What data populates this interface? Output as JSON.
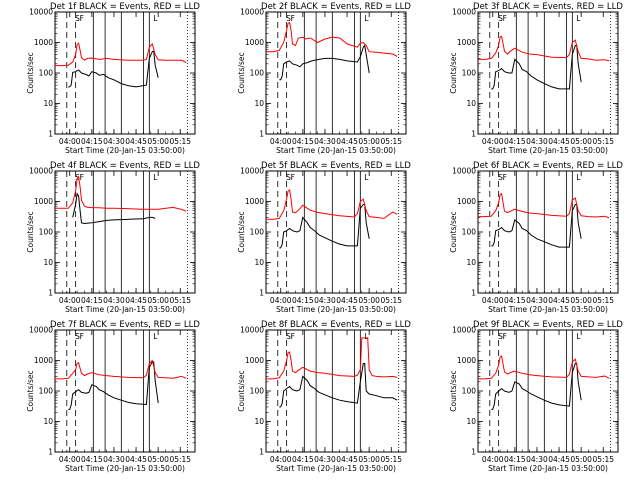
{
  "figure": {
    "type": "line",
    "background": "#ffffff",
    "series_colors": {
      "events": "#000000",
      "lld": "#ff0000"
    },
    "ylabel": "Counts/sec",
    "xlabel": "Start Time (20-Jan-15 03:50:00)",
    "x_tick_labels": [
      "04:00",
      "04:15",
      "04:30",
      "04:45",
      "05:00",
      "05:15"
    ],
    "y_tick_labels": [
      "1",
      "10",
      "100",
      "1000",
      "10000"
    ],
    "letter_markers": [
      "S",
      "F",
      "L"
    ]
  },
  "chart_data": [
    {
      "type": "line",
      "title": "Det 1f BLACK = Events, RED = LLD",
      "xlabel": "Start Time (20-Jan-15 03:50:00)",
      "ylabel": "Counts/sec",
      "x_unit": "minutes after 03:50:00",
      "xlim": [
        0,
        95
      ],
      "ylim": [
        1,
        10000
      ],
      "y_scale": "log",
      "events": {
        "x": [
          9,
          10,
          11,
          12,
          14,
          16,
          18,
          21,
          23,
          25,
          28,
          30,
          33,
          36,
          40,
          45,
          50,
          55,
          62,
          64,
          66,
          67,
          68,
          70
        ],
        "y": [
          35,
          35,
          40,
          105,
          110,
          125,
          100,
          90,
          80,
          110,
          100,
          85,
          90,
          70,
          60,
          45,
          38,
          35,
          40,
          300,
          500,
          520,
          180,
          70
        ]
      },
      "lld": {
        "x": [
          0,
          5,
          9,
          12,
          14,
          15,
          16,
          17,
          18,
          20,
          22,
          25,
          30,
          35,
          40,
          50,
          60,
          62,
          64,
          66,
          68,
          70,
          75,
          80,
          86,
          89
        ],
        "y": [
          175,
          175,
          180,
          230,
          400,
          850,
          950,
          550,
          320,
          260,
          300,
          310,
          280,
          300,
          280,
          260,
          260,
          280,
          700,
          900,
          400,
          270,
          260,
          260,
          260,
          220
        ]
      }
    },
    {
      "type": "line",
      "title": "Det 2f BLACK = Events, RED = LLD",
      "xlabel": "Start Time (20-Jan-15 03:50:00)",
      "ylabel": "Counts/sec",
      "x_unit": "minutes after 03:50:00",
      "xlim": [
        0,
        95
      ],
      "ylim": [
        1,
        10000
      ],
      "y_scale": "log",
      "events": {
        "x": [
          9,
          10,
          11,
          12,
          14,
          16,
          18,
          21,
          23,
          25,
          28,
          30,
          33,
          36,
          40,
          45,
          50,
          55,
          62,
          64,
          66,
          67,
          68,
          70
        ],
        "y": [
          60,
          60,
          80,
          200,
          230,
          250,
          200,
          180,
          160,
          200,
          220,
          240,
          260,
          280,
          300,
          300,
          280,
          250,
          230,
          340,
          700,
          800,
          400,
          100
        ]
      },
      "lld": {
        "x": [
          0,
          5,
          9,
          12,
          14,
          15,
          16,
          17,
          18,
          20,
          22,
          25,
          27,
          30,
          35,
          40,
          45,
          50,
          55,
          62,
          64,
          66,
          68,
          70,
          75,
          80,
          86,
          89
        ],
        "y": [
          500,
          500,
          550,
          1000,
          2500,
          4300,
          4500,
          2500,
          900,
          800,
          1400,
          1500,
          1300,
          1400,
          1000,
          1300,
          1500,
          1400,
          900,
          700,
          950,
          1000,
          800,
          500,
          480,
          450,
          420,
          350
        ]
      }
    },
    {
      "type": "line",
      "title": "Det 3f BLACK = Events, RED = LLD",
      "xlabel": "Start Time (20-Jan-15 03:50:00)",
      "ylabel": "Counts/sec",
      "x_unit": "minutes after 03:50:00",
      "xlim": [
        0,
        95
      ],
      "ylim": [
        1,
        10000
      ],
      "y_scale": "log",
      "events": {
        "x": [
          9,
          10,
          11,
          12,
          14,
          16,
          18,
          21,
          23,
          25,
          28,
          30,
          33,
          36,
          40,
          45,
          50,
          55,
          62,
          64,
          66,
          67,
          68,
          70
        ],
        "y": [
          30,
          30,
          40,
          110,
          120,
          140,
          110,
          100,
          100,
          280,
          200,
          130,
          110,
          80,
          60,
          45,
          35,
          30,
          30,
          400,
          800,
          800,
          200,
          50
        ]
      },
      "lld": {
        "x": [
          0,
          5,
          9,
          12,
          14,
          15,
          16,
          17,
          18,
          20,
          22,
          25,
          30,
          35,
          40,
          50,
          60,
          62,
          64,
          66,
          68,
          70,
          75,
          80,
          86,
          89
        ],
        "y": [
          280,
          280,
          300,
          450,
          800,
          1500,
          1600,
          900,
          520,
          420,
          520,
          650,
          480,
          420,
          400,
          330,
          320,
          400,
          1000,
          1200,
          500,
          300,
          290,
          260,
          270,
          250
        ]
      }
    },
    {
      "type": "line",
      "title": "Det 4f BLACK = Events, RED = LLD",
      "xlabel": "Start Time (20-Jan-15 03:50:00)",
      "ylabel": "Counts/sec",
      "x_unit": "minutes after 03:50:00",
      "xlim": [
        0,
        95
      ],
      "ylim": [
        1,
        10000
      ],
      "y_scale": "log",
      "events": {
        "x": [
          12,
          14,
          15,
          16,
          17,
          18,
          20,
          25,
          30,
          35,
          40,
          50,
          60,
          64,
          66,
          68
        ],
        "y": [
          300,
          800,
          1800,
          1500,
          500,
          200,
          190,
          200,
          220,
          240,
          250,
          260,
          270,
          300,
          300,
          280
        ]
      },
      "lld": {
        "x": [
          0,
          5,
          9,
          12,
          14,
          15,
          16,
          17,
          18,
          20,
          22,
          25,
          30,
          35,
          40,
          50,
          60,
          66,
          70,
          80,
          86,
          89
        ],
        "y": [
          600,
          600,
          600,
          900,
          2200,
          5500,
          6500,
          3000,
          1100,
          700,
          650,
          630,
          620,
          600,
          600,
          580,
          560,
          560,
          560,
          640,
          550,
          480
        ]
      }
    },
    {
      "type": "line",
      "title": "Det 5f BLACK = Events, RED = LLD",
      "xlabel": "Start Time (20-Jan-15 03:50:00)",
      "ylabel": "Counts/sec",
      "x_unit": "minutes after 03:50:00",
      "xlim": [
        0,
        95
      ],
      "ylim": [
        1,
        10000
      ],
      "y_scale": "log",
      "events": {
        "x": [
          9,
          10,
          11,
          12,
          14,
          16,
          18,
          21,
          23,
          25,
          28,
          30,
          33,
          36,
          40,
          45,
          50,
          55,
          62,
          64,
          66,
          67,
          68,
          70
        ],
        "y": [
          30,
          30,
          40,
          100,
          110,
          130,
          110,
          100,
          110,
          300,
          200,
          140,
          110,
          80,
          65,
          50,
          40,
          35,
          35,
          600,
          800,
          800,
          200,
          60
        ]
      },
      "lld": {
        "x": [
          0,
          5,
          9,
          12,
          14,
          15,
          16,
          17,
          18,
          20,
          22,
          25,
          30,
          35,
          40,
          50,
          60,
          62,
          64,
          66,
          68,
          70,
          75,
          80,
          86,
          89
        ],
        "y": [
          260,
          260,
          280,
          500,
          1200,
          2200,
          2400,
          1200,
          450,
          430,
          520,
          750,
          520,
          440,
          400,
          340,
          310,
          400,
          1000,
          1200,
          500,
          320,
          300,
          280,
          450,
          380
        ]
      }
    },
    {
      "type": "line",
      "title": "Det 6f BLACK = Events, RED = LLD",
      "xlabel": "Start Time (20-Jan-15 03:50:00)",
      "ylabel": "Counts/sec",
      "x_unit": "minutes after 03:50:00",
      "xlim": [
        0,
        95
      ],
      "ylim": [
        1,
        10000
      ],
      "y_scale": "log",
      "events": {
        "x": [
          9,
          10,
          11,
          12,
          14,
          16,
          18,
          21,
          23,
          25,
          28,
          30,
          33,
          36,
          40,
          45,
          50,
          55,
          62,
          64,
          66,
          67,
          68,
          70
        ],
        "y": [
          35,
          35,
          45,
          110,
          120,
          140,
          110,
          100,
          110,
          250,
          190,
          130,
          110,
          80,
          60,
          48,
          38,
          32,
          32,
          500,
          800,
          800,
          200,
          60
        ]
      },
      "lld": {
        "x": [
          0,
          5,
          9,
          12,
          14,
          15,
          16,
          17,
          18,
          20,
          22,
          25,
          30,
          35,
          40,
          50,
          60,
          62,
          64,
          66,
          68,
          70,
          75,
          80,
          86,
          89
        ],
        "y": [
          320,
          320,
          330,
          500,
          900,
          1700,
          1800,
          900,
          480,
          430,
          480,
          560,
          470,
          420,
          400,
          350,
          330,
          400,
          1100,
          1300,
          500,
          340,
          320,
          310,
          330,
          290
        ]
      }
    },
    {
      "type": "line",
      "title": "Det 7f BLACK = Events, RED = LLD",
      "xlabel": "Start Time (20-Jan-15 03:50:00)",
      "ylabel": "Counts/sec",
      "x_unit": "minutes after 03:50:00",
      "xlim": [
        0,
        95
      ],
      "ylim": [
        1,
        10000
      ],
      "y_scale": "log",
      "events": {
        "x": [
          9,
          10,
          11,
          12,
          14,
          16,
          18,
          21,
          23,
          25,
          28,
          30,
          33,
          36,
          40,
          45,
          50,
          55,
          62,
          64,
          66,
          67,
          68,
          70
        ],
        "y": [
          25,
          25,
          35,
          80,
          95,
          110,
          90,
          85,
          90,
          160,
          140,
          110,
          95,
          75,
          60,
          50,
          42,
          38,
          36,
          600,
          900,
          900,
          220,
          40
        ]
      },
      "lld": {
        "x": [
          0,
          5,
          9,
          12,
          14,
          15,
          16,
          17,
          18,
          20,
          22,
          25,
          30,
          35,
          40,
          50,
          60,
          62,
          64,
          66,
          68,
          70,
          75,
          80,
          86,
          89
        ],
        "y": [
          250,
          250,
          260,
          380,
          500,
          800,
          850,
          550,
          380,
          320,
          360,
          400,
          340,
          320,
          300,
          280,
          270,
          330,
          800,
          1000,
          400,
          280,
          270,
          260,
          300,
          260
        ]
      }
    },
    {
      "type": "line",
      "title": "Det 8f BLACK = Events, RED = LLD",
      "xlabel": "Start Time (20-Jan-15 03:50:00)",
      "ylabel": "Counts/sec",
      "x_unit": "minutes after 03:50:00",
      "xlim": [
        0,
        95
      ],
      "ylim": [
        1,
        10000
      ],
      "y_scale": "log",
      "events": {
        "x": [
          9,
          10,
          11,
          12,
          14,
          16,
          18,
          21,
          23,
          25,
          28,
          30,
          33,
          36,
          40,
          45,
          50,
          55,
          62,
          64,
          66,
          67,
          68,
          70,
          75,
          80,
          86,
          89
        ],
        "y": [
          30,
          30,
          40,
          100,
          120,
          140,
          110,
          100,
          110,
          300,
          220,
          150,
          120,
          90,
          75,
          60,
          50,
          45,
          40,
          200,
          800,
          800,
          100,
          80,
          70,
          60,
          60,
          50
        ]
      },
      "lld": {
        "x": [
          0,
          5,
          9,
          12,
          14,
          15,
          16,
          17,
          18,
          20,
          22,
          25,
          30,
          35,
          40,
          50,
          60,
          62,
          64,
          65,
          66,
          67,
          68,
          69,
          70,
          72,
          75,
          80,
          86,
          89
        ],
        "y": [
          250,
          250,
          270,
          450,
          1000,
          1800,
          1900,
          1000,
          450,
          400,
          480,
          600,
          450,
          400,
          380,
          320,
          300,
          330,
          500,
          5500,
          5500,
          5500,
          5500,
          5500,
          500,
          320,
          300,
          290,
          300,
          280
        ]
      }
    },
    {
      "type": "line",
      "title": "Det 9f BLACK = Events, RED = LLD",
      "xlabel": "Start Time (20-Jan-15 03:50:00)",
      "ylabel": "Counts/sec",
      "x_unit": "minutes after 03:50:00",
      "xlim": [
        0,
        95
      ],
      "ylim": [
        1,
        10000
      ],
      "y_scale": "log",
      "events": {
        "x": [
          9,
          10,
          11,
          12,
          14,
          16,
          18,
          21,
          23,
          25,
          28,
          30,
          33,
          36,
          40,
          45,
          50,
          55,
          62,
          64,
          66,
          67,
          68,
          70
        ],
        "y": [
          25,
          25,
          35,
          80,
          100,
          120,
          100,
          90,
          100,
          200,
          170,
          120,
          100,
          80,
          65,
          50,
          40,
          35,
          32,
          400,
          800,
          800,
          200,
          50
        ]
      },
      "lld": {
        "x": [
          0,
          5,
          9,
          12,
          14,
          15,
          16,
          17,
          18,
          20,
          22,
          25,
          30,
          35,
          40,
          50,
          60,
          62,
          64,
          66,
          68,
          70,
          75,
          80,
          86,
          89
        ],
        "y": [
          250,
          250,
          260,
          380,
          700,
          1300,
          1400,
          750,
          420,
          360,
          400,
          450,
          380,
          340,
          320,
          290,
          280,
          350,
          900,
          1100,
          450,
          300,
          290,
          280,
          310,
          260
        ]
      }
    }
  ]
}
